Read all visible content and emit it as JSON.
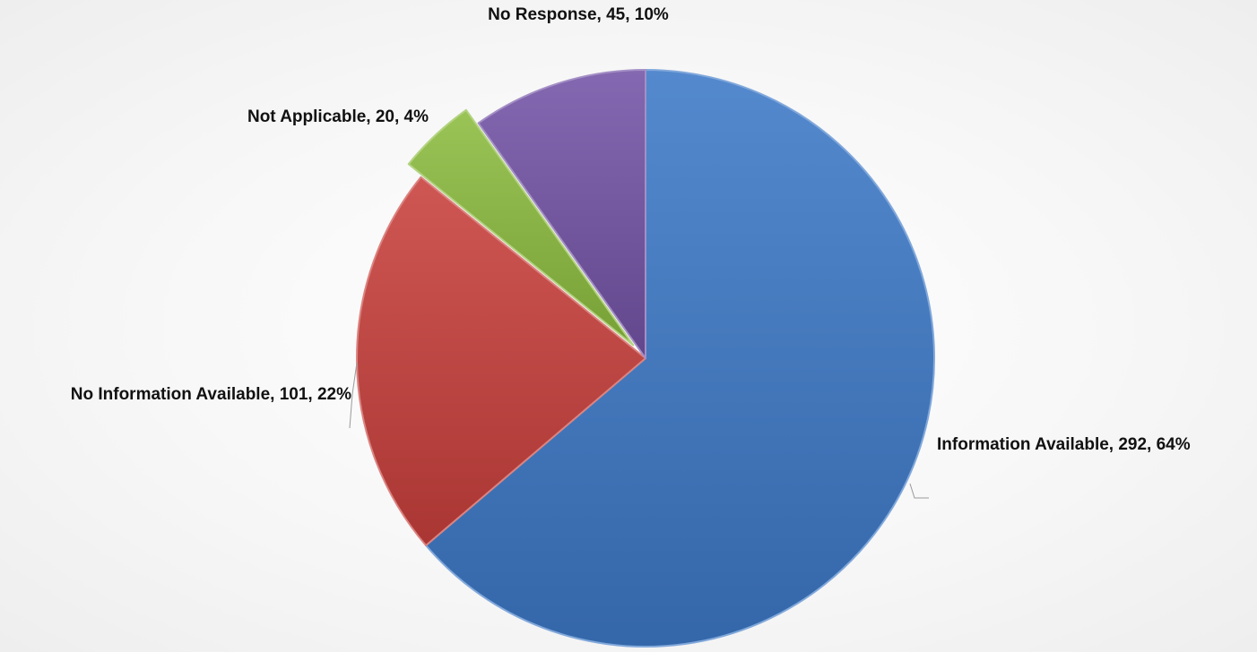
{
  "chart_data": {
    "type": "pie",
    "title": "",
    "legend": "none",
    "slices": [
      {
        "label": "Information Available",
        "value": 292,
        "percent": "64%",
        "color": "#3d79c7",
        "explode": false,
        "text": "Information Available, 292, 64%"
      },
      {
        "label": "No Information Available",
        "value": 101,
        "percent": "22%",
        "color": "#c8403c",
        "explode": false,
        "text": "No Information Available, 101, 22%"
      },
      {
        "label": "Not Applicable",
        "value": 20,
        "percent": "4%",
        "color": "#8cbc3f",
        "explode": true,
        "text": "Not Applicable, 20, 4%"
      },
      {
        "label": "No Response",
        "value": 45,
        "percent": "10%",
        "color": "#7353a6",
        "explode": false,
        "text": "No Response, 45, 10%"
      }
    ]
  }
}
